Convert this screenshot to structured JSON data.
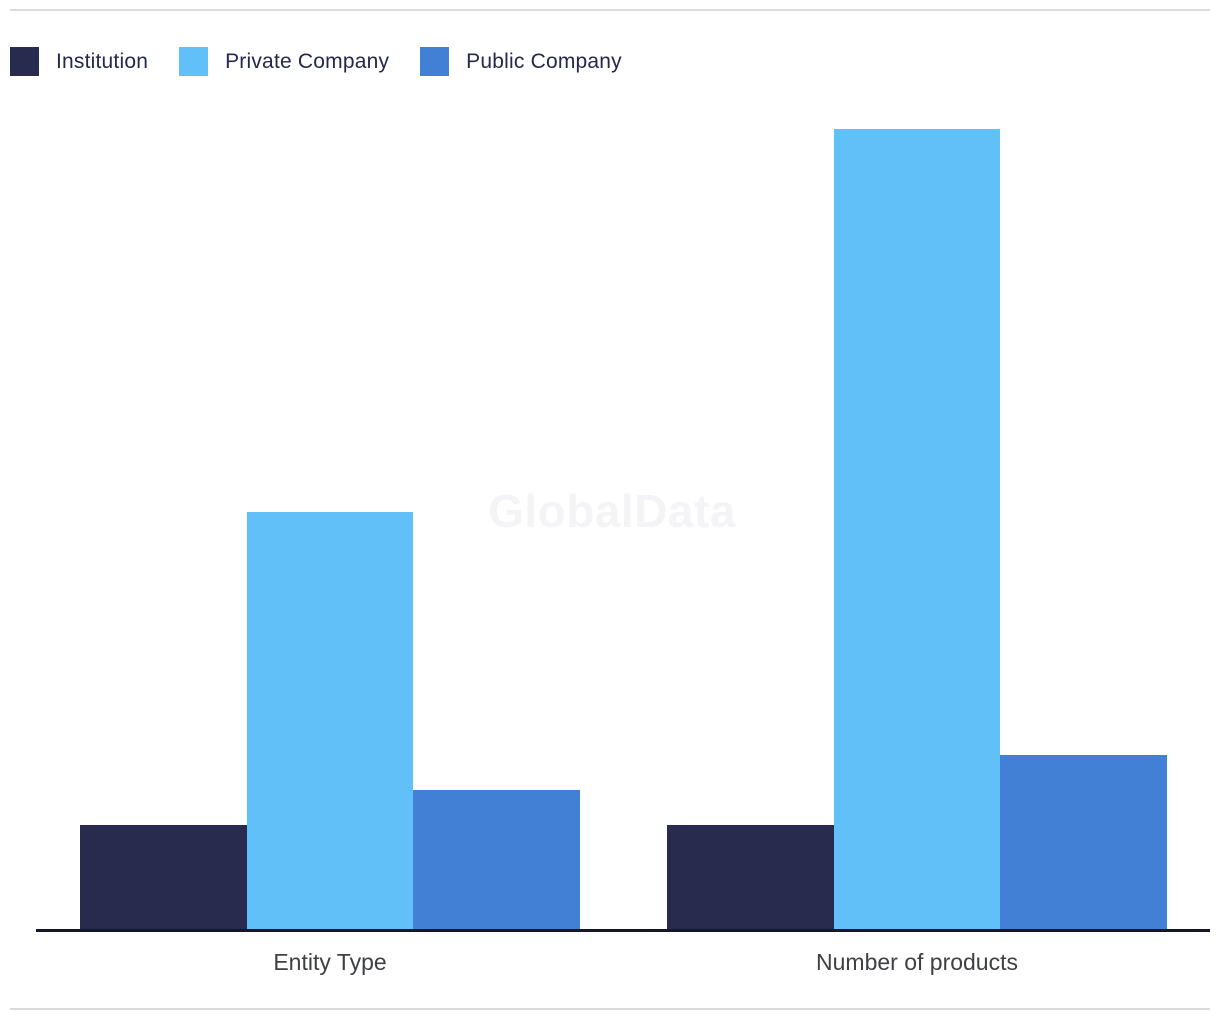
{
  "page": {
    "background": "#FFFFFF",
    "divider_color": "#DADADA",
    "axis_line_color": "#14172B"
  },
  "legend": {
    "items": [
      {
        "label": "Institution",
        "color": "#282B4D"
      },
      {
        "label": "Private Company",
        "color": "#61C0F7"
      },
      {
        "label": "Public Company",
        "color": "#4280D5"
      }
    ]
  },
  "watermark": {
    "text": "GlobalData"
  },
  "chart_data": {
    "type": "bar",
    "categories": [
      "Entity Type",
      "Number of products"
    ],
    "series": [
      {
        "name": "Institution",
        "color": "#282B4D",
        "values": [
          3,
          3
        ]
      },
      {
        "name": "Private Company",
        "color": "#61C0F7",
        "values": [
          12,
          23
        ]
      },
      {
        "name": "Public Company",
        "color": "#4280D5",
        "values": [
          4,
          5
        ]
      }
    ],
    "title": "",
    "xlabel": "",
    "ylabel": "",
    "ylim": [
      0,
      24
    ],
    "grid": false,
    "y_axis_visible": false,
    "legend_position": "top-left"
  }
}
